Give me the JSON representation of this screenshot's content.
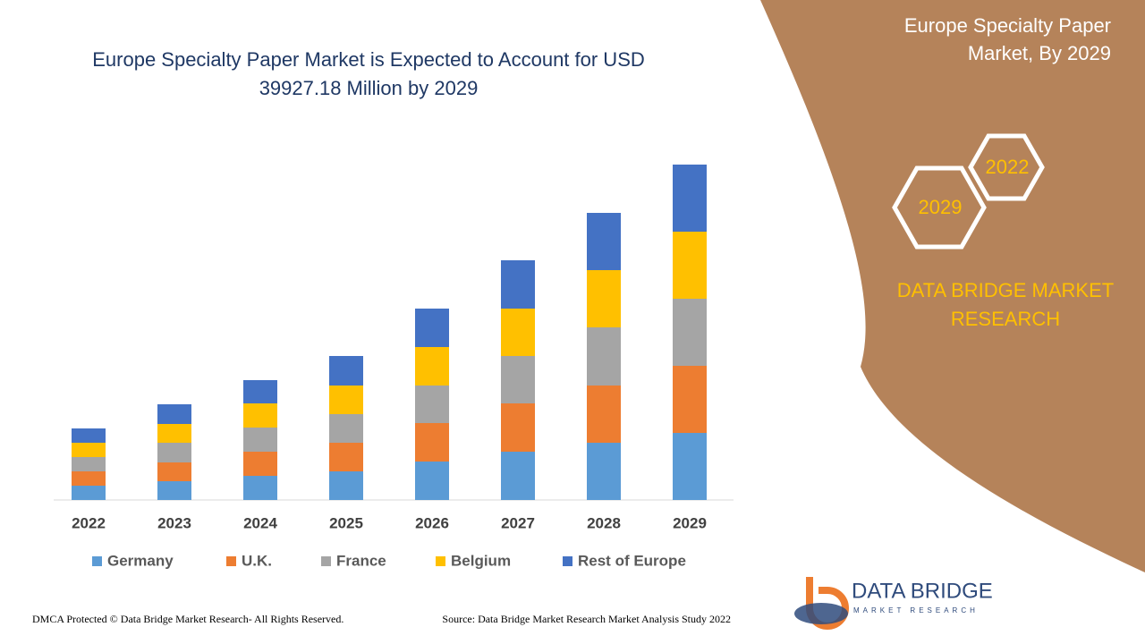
{
  "chart_data": {
    "type": "stacked_bar",
    "title": [
      "Europe Specialty Paper Market is Expected to Account for USD",
      "39927.18 Million by 2029"
    ],
    "categories": [
      "2022",
      "2023",
      "2024",
      "2025",
      "2026",
      "2027",
      "2028",
      "2029"
    ],
    "series": [
      {
        "name": "Germany",
        "color": "#5b9bd5",
        "values": [
          16,
          21,
          27,
          32,
          43,
          54,
          64,
          75
        ]
      },
      {
        "name": "U.K.",
        "color": "#ed7d31",
        "values": [
          16,
          21,
          27,
          32,
          43,
          54,
          64,
          75
        ]
      },
      {
        "name": "France",
        "color": "#a5a5a5",
        "values": [
          16,
          22,
          27,
          32,
          42,
          53,
          65,
          75
        ]
      },
      {
        "name": "Belgium",
        "color": "#ffc000",
        "values": [
          16,
          21,
          27,
          32,
          43,
          53,
          64,
          75
        ]
      },
      {
        "name": "Rest of Europe",
        "color": "#4472c4",
        "values": [
          16,
          22,
          26,
          33,
          43,
          54,
          64,
          75
        ]
      }
    ]
  },
  "panel": {
    "title": [
      "Europe Specialty Paper",
      "Market, By 2029"
    ],
    "hex_back": "2022",
    "hex_front": "2029",
    "brand": [
      "DATA BRIDGE MARKET",
      "RESEARCH"
    ]
  },
  "logo": {
    "name": "DATA BRIDGE",
    "tagline": "MARKET RESEARCH"
  },
  "footer": {
    "left": "DMCA Protected © Data Bridge Market Research- All Rights Reserved.",
    "right": "Source: Data Bridge Market Research Market Analysis Study 2022"
  }
}
